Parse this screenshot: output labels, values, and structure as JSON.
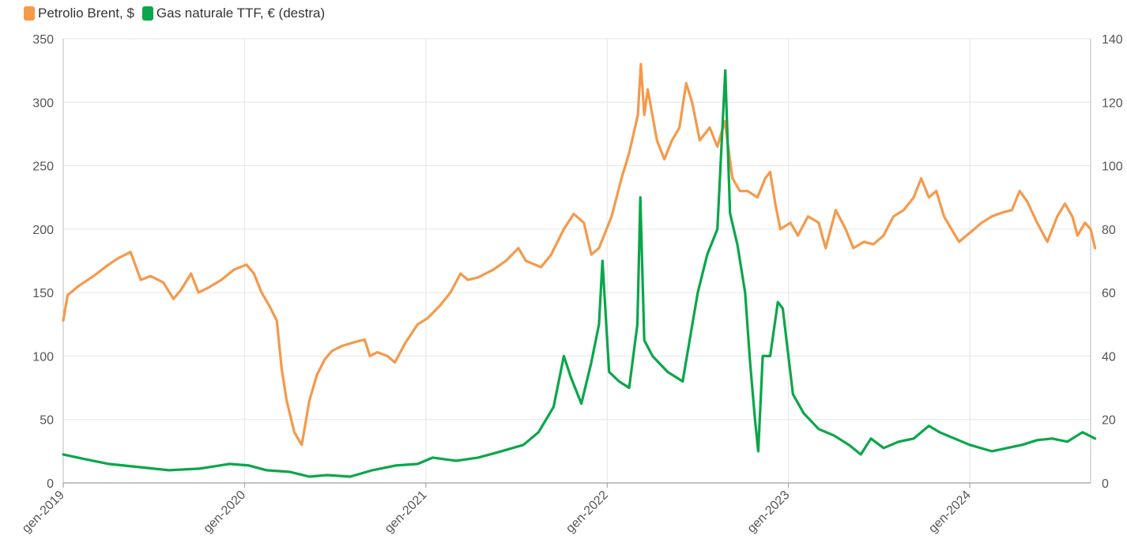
{
  "chart_data": {
    "type": "line",
    "title": "",
    "xlabel": "",
    "ylabel": "",
    "legend_position": "top-left",
    "grid": true,
    "x_ticks": [
      "gen-2019",
      "gen-2020",
      "gen-2021",
      "gen-2022",
      "gen-2023",
      "gen-2024"
    ],
    "xlim": [
      "2019-01",
      "2024-09"
    ],
    "y_left": {
      "ylim": [
        0,
        350
      ],
      "ticks": [
        "0",
        "50",
        "100",
        "150",
        "200",
        "250",
        "300",
        "350"
      ]
    },
    "y_right": {
      "ylim": [
        0,
        140
      ],
      "ticks": [
        "0",
        "20",
        "40",
        "60",
        "80",
        "100",
        "120",
        "140"
      ]
    },
    "series": [
      {
        "name": "Petrolio Brent, $",
        "axis": "left",
        "color": "#f5994a",
        "points": [
          [
            "2019-01-01",
            128
          ],
          [
            "2019-01-10",
            148
          ],
          [
            "2019-02-01",
            155
          ],
          [
            "2019-03-01",
            163
          ],
          [
            "2019-04-01",
            172
          ],
          [
            "2019-04-20",
            177
          ],
          [
            "2019-05-15",
            182
          ],
          [
            "2019-06-05",
            160
          ],
          [
            "2019-06-25",
            163
          ],
          [
            "2019-07-20",
            158
          ],
          [
            "2019-08-10",
            145
          ],
          [
            "2019-08-25",
            152
          ],
          [
            "2019-09-15",
            165
          ],
          [
            "2019-09-30",
            150
          ],
          [
            "2019-10-20",
            154
          ],
          [
            "2019-11-15",
            160
          ],
          [
            "2019-12-10",
            168
          ],
          [
            "2020-01-05",
            172
          ],
          [
            "2020-01-20",
            165
          ],
          [
            "2020-02-05",
            150
          ],
          [
            "2020-02-20",
            140
          ],
          [
            "2020-03-05",
            128
          ],
          [
            "2020-03-15",
            90
          ],
          [
            "2020-03-25",
            65
          ],
          [
            "2020-04-10",
            40
          ],
          [
            "2020-04-25",
            30
          ],
          [
            "2020-05-10",
            65
          ],
          [
            "2020-05-25",
            85
          ],
          [
            "2020-06-10",
            97
          ],
          [
            "2020-06-25",
            104
          ],
          [
            "2020-07-15",
            108
          ],
          [
            "2020-08-10",
            111
          ],
          [
            "2020-08-30",
            113
          ],
          [
            "2020-09-10",
            100
          ],
          [
            "2020-09-25",
            103
          ],
          [
            "2020-10-15",
            100
          ],
          [
            "2020-10-30",
            95
          ],
          [
            "2020-11-20",
            110
          ],
          [
            "2020-12-15",
            125
          ],
          [
            "2021-01-05",
            130
          ],
          [
            "2021-01-30",
            140
          ],
          [
            "2021-02-20",
            150
          ],
          [
            "2021-03-10",
            165
          ],
          [
            "2021-03-25",
            160
          ],
          [
            "2021-04-15",
            162
          ],
          [
            "2021-05-15",
            168
          ],
          [
            "2021-06-10",
            175
          ],
          [
            "2021-07-05",
            185
          ],
          [
            "2021-07-20",
            175
          ],
          [
            "2021-08-20",
            170
          ],
          [
            "2021-09-10",
            180
          ],
          [
            "2021-10-05",
            200
          ],
          [
            "2021-10-25",
            212
          ],
          [
            "2021-11-15",
            205
          ],
          [
            "2021-11-30",
            180
          ],
          [
            "2021-12-15",
            185
          ],
          [
            "2022-01-10",
            210
          ],
          [
            "2022-01-30",
            240
          ],
          [
            "2022-02-15",
            260
          ],
          [
            "2022-03-02",
            290
          ],
          [
            "2022-03-08",
            330
          ],
          [
            "2022-03-15",
            290
          ],
          [
            "2022-03-22",
            310
          ],
          [
            "2022-04-10",
            270
          ],
          [
            "2022-04-25",
            255
          ],
          [
            "2022-05-10",
            270
          ],
          [
            "2022-05-25",
            280
          ],
          [
            "2022-06-08",
            315
          ],
          [
            "2022-06-20",
            300
          ],
          [
            "2022-07-05",
            270
          ],
          [
            "2022-07-25",
            280
          ],
          [
            "2022-08-10",
            265
          ],
          [
            "2022-08-25",
            285
          ],
          [
            "2022-09-10",
            240
          ],
          [
            "2022-09-25",
            230
          ],
          [
            "2022-10-10",
            230
          ],
          [
            "2022-10-30",
            225
          ],
          [
            "2022-11-15",
            240
          ],
          [
            "2022-11-25",
            245
          ],
          [
            "2022-12-05",
            220
          ],
          [
            "2022-12-15",
            200
          ],
          [
            "2023-01-05",
            205
          ],
          [
            "2023-01-20",
            195
          ],
          [
            "2023-02-10",
            210
          ],
          [
            "2023-03-01",
            205
          ],
          [
            "2023-03-15",
            185
          ],
          [
            "2023-04-05",
            215
          ],
          [
            "2023-04-25",
            200
          ],
          [
            "2023-05-10",
            185
          ],
          [
            "2023-06-01",
            190
          ],
          [
            "2023-06-20",
            188
          ],
          [
            "2023-07-10",
            195
          ],
          [
            "2023-07-30",
            210
          ],
          [
            "2023-08-20",
            215
          ],
          [
            "2023-09-10",
            225
          ],
          [
            "2023-09-25",
            240
          ],
          [
            "2023-10-10",
            225
          ],
          [
            "2023-10-25",
            230
          ],
          [
            "2023-11-10",
            210
          ],
          [
            "2023-11-25",
            200
          ],
          [
            "2023-12-10",
            190
          ],
          [
            "2023-12-25",
            195
          ],
          [
            "2024-01-10",
            200
          ],
          [
            "2024-01-25",
            205
          ],
          [
            "2024-02-15",
            210
          ],
          [
            "2024-03-05",
            213
          ],
          [
            "2024-03-25",
            215
          ],
          [
            "2024-04-10",
            230
          ],
          [
            "2024-04-25",
            222
          ],
          [
            "2024-05-15",
            205
          ],
          [
            "2024-06-05",
            190
          ],
          [
            "2024-06-25",
            210
          ],
          [
            "2024-07-10",
            220
          ],
          [
            "2024-07-25",
            210
          ],
          [
            "2024-08-05",
            195
          ],
          [
            "2024-08-20",
            205
          ],
          [
            "2024-09-01",
            200
          ],
          [
            "2024-09-10",
            185
          ]
        ]
      },
      {
        "name": "Gas naturale TTF, € (destra)",
        "axis": "right",
        "color": "#0aa64a",
        "points": [
          [
            "2019-01-01",
            9
          ],
          [
            "2019-02-15",
            7.5
          ],
          [
            "2019-04-01",
            6
          ],
          [
            "2019-06-01",
            5
          ],
          [
            "2019-08-01",
            4
          ],
          [
            "2019-10-01",
            4.5
          ],
          [
            "2019-12-01",
            6
          ],
          [
            "2020-01-10",
            5.5
          ],
          [
            "2020-02-15",
            4
          ],
          [
            "2020-04-01",
            3.5
          ],
          [
            "2020-05-10",
            2
          ],
          [
            "2020-06-15",
            2.5
          ],
          [
            "2020-08-01",
            2
          ],
          [
            "2020-09-15",
            4
          ],
          [
            "2020-11-01",
            5.5
          ],
          [
            "2020-12-15",
            6
          ],
          [
            "2021-01-15",
            8
          ],
          [
            "2021-03-01",
            7
          ],
          [
            "2021-04-15",
            8
          ],
          [
            "2021-06-01",
            10
          ],
          [
            "2021-07-15",
            12
          ],
          [
            "2021-08-15",
            16
          ],
          [
            "2021-09-15",
            24
          ],
          [
            "2021-10-05",
            40
          ],
          [
            "2021-10-20",
            33
          ],
          [
            "2021-11-10",
            25
          ],
          [
            "2021-11-30",
            38
          ],
          [
            "2021-12-15",
            50
          ],
          [
            "2021-12-22",
            70
          ],
          [
            "2022-01-05",
            35
          ],
          [
            "2022-01-25",
            32
          ],
          [
            "2022-02-15",
            30
          ],
          [
            "2022-03-01",
            50
          ],
          [
            "2022-03-07",
            90
          ],
          [
            "2022-03-15",
            45
          ],
          [
            "2022-04-01",
            40
          ],
          [
            "2022-05-01",
            35
          ],
          [
            "2022-06-01",
            32
          ],
          [
            "2022-06-15",
            45
          ],
          [
            "2022-07-01",
            60
          ],
          [
            "2022-07-20",
            72
          ],
          [
            "2022-08-10",
            80
          ],
          [
            "2022-08-26",
            130
          ],
          [
            "2022-09-05",
            85
          ],
          [
            "2022-09-20",
            75
          ],
          [
            "2022-10-05",
            60
          ],
          [
            "2022-10-15",
            38
          ],
          [
            "2022-10-25",
            20
          ],
          [
            "2022-11-01",
            10
          ],
          [
            "2022-11-10",
            40
          ],
          [
            "2022-11-25",
            40
          ],
          [
            "2022-12-10",
            57
          ],
          [
            "2022-12-20",
            55
          ],
          [
            "2023-01-10",
            28
          ],
          [
            "2023-02-01",
            22
          ],
          [
            "2023-03-01",
            17
          ],
          [
            "2023-04-01",
            15
          ],
          [
            "2023-05-01",
            12
          ],
          [
            "2023-05-25",
            9
          ],
          [
            "2023-06-15",
            14
          ],
          [
            "2023-07-10",
            11
          ],
          [
            "2023-08-10",
            13
          ],
          [
            "2023-09-10",
            14
          ],
          [
            "2023-10-10",
            18
          ],
          [
            "2023-11-01",
            16
          ],
          [
            "2023-12-01",
            14
          ],
          [
            "2024-01-01",
            12
          ],
          [
            "2024-02-15",
            10
          ],
          [
            "2024-03-15",
            11
          ],
          [
            "2024-04-15",
            12
          ],
          [
            "2024-05-15",
            13.5
          ],
          [
            "2024-06-15",
            14
          ],
          [
            "2024-07-15",
            13
          ],
          [
            "2024-08-15",
            16
          ],
          [
            "2024-09-10",
            14
          ]
        ]
      }
    ]
  }
}
